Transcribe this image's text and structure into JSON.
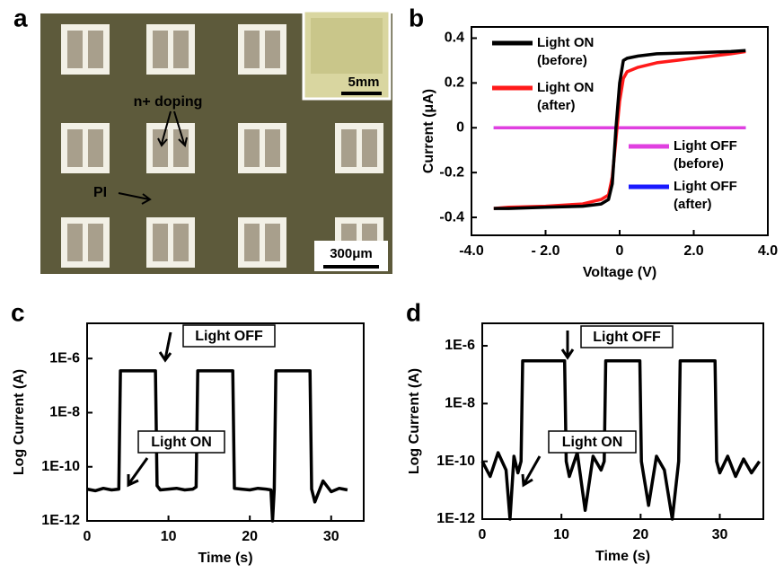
{
  "photo": {
    "label": "a",
    "annotations": [
      "n+ doping",
      "PI"
    ],
    "inset_scale": "5mm",
    "scale_bar": "300μm"
  },
  "chart_data": [
    {
      "type": "line",
      "panel_label": "b",
      "x_label": "Voltage (V)",
      "y_label": "Current (μA)",
      "xlim": [
        -4,
        4
      ],
      "ylim": [
        -0.48,
        0.45
      ],
      "xticks": [
        {
          "value": -4,
          "label": "-4.0"
        },
        {
          "value": -2,
          "label": "- 2.0"
        },
        0,
        {
          "value": 2,
          "label": "2.0"
        },
        {
          "value": 4,
          "label": "4.0"
        }
      ],
      "yticks": [
        -0.4,
        -0.2,
        0,
        0.2,
        0.4
      ],
      "x": [
        -3.4,
        -3,
        -2,
        -1,
        -0.5,
        -0.3,
        -0.2,
        -0.1,
        0,
        0.1,
        0.2,
        0.5,
        1,
        2,
        3,
        3.4
      ],
      "series": [
        {
          "name": "Light ON (before)",
          "color": "#000000",
          "values": [
            -0.36,
            -0.36,
            -0.355,
            -0.35,
            -0.34,
            -0.32,
            -0.25,
            0,
            0.2,
            0.3,
            0.31,
            0.32,
            0.33,
            0.335,
            0.34,
            0.345
          ]
        },
        {
          "name": "Light ON (after)",
          "color": "#ff1a1a",
          "values": [
            -0.36,
            -0.355,
            -0.35,
            -0.34,
            -0.32,
            -0.3,
            -0.22,
            -0.05,
            0.12,
            0.22,
            0.25,
            0.27,
            0.29,
            0.31,
            0.33,
            0.34
          ]
        },
        {
          "name": "Light OFF (before)",
          "color": "#e040e0",
          "values": [
            0,
            0,
            0,
            0,
            0,
            0,
            0,
            0,
            0,
            0,
            0,
            0,
            0,
            0,
            0,
            0
          ]
        },
        {
          "name": "Light OFF (after)",
          "color": "#1a1aff",
          "values": [
            0,
            0,
            0,
            0,
            0,
            0,
            0,
            0,
            0,
            0,
            0,
            0,
            0,
            0,
            0,
            0
          ]
        }
      ]
    },
    {
      "type": "line",
      "panel_label": "c",
      "x_label": "Time (s)",
      "y_label": "Log Current (A)",
      "yscale": "log",
      "xlim": [
        0,
        34
      ],
      "ylim": [
        1e-12,
        2e-05
      ],
      "xticks": [
        0,
        10,
        20,
        30
      ],
      "yticks": [
        {
          "value": 1e-12,
          "label": "1E-12"
        },
        {
          "value": 1e-10,
          "label": "1E-10"
        },
        {
          "value": 1e-08,
          "label": "1E-8"
        },
        {
          "value": 1e-06,
          "label": "1E-6"
        }
      ],
      "annotations": [
        "Light OFF",
        "Light ON"
      ],
      "x": [
        0,
        1,
        2,
        3,
        3.9,
        4.1,
        5,
        6,
        7,
        8,
        8.4,
        8.6,
        9,
        10,
        11,
        12,
        13,
        13.4,
        13.6,
        14,
        15,
        16,
        17,
        17.9,
        18.1,
        19,
        20,
        21,
        22,
        22.6,
        22.8,
        23,
        23.2,
        24,
        25,
        26,
        27,
        27.4,
        27.6,
        28,
        29,
        30,
        31,
        32
      ],
      "series": [
        {
          "color": "#000000",
          "values": [
            1.5e-11,
            1.3e-11,
            1.6e-11,
            1.4e-11,
            1.5e-11,
            3.5e-07,
            3.5e-07,
            3.5e-07,
            3.5e-07,
            3.5e-07,
            3.5e-07,
            2e-11,
            1.4e-11,
            1.5e-11,
            1.6e-11,
            1.4e-11,
            1.5e-11,
            1.8e-11,
            3.5e-07,
            3.5e-07,
            3.5e-07,
            3.5e-07,
            3.5e-07,
            3.5e-07,
            1.6e-11,
            1.5e-11,
            1.4e-11,
            1.6e-11,
            1.5e-11,
            1.4e-11,
            1e-12,
            1.5e-11,
            3.5e-07,
            3.5e-07,
            3.5e-07,
            3.5e-07,
            3.5e-07,
            3.5e-07,
            1.5e-11,
            5e-12,
            3e-11,
            1.2e-11,
            1.6e-11,
            1.4e-11
          ]
        }
      ]
    },
    {
      "type": "line",
      "panel_label": "d",
      "x_label": "Time (s)",
      "y_label": "Log Current (A)",
      "yscale": "log",
      "xlim": [
        0,
        35.5
      ],
      "ylim": [
        1e-12,
        6e-06
      ],
      "xticks": [
        0,
        10,
        20,
        30
      ],
      "yticks": [
        {
          "value": 1e-12,
          "label": "1E-12"
        },
        {
          "value": 1e-10,
          "label": "1E-10"
        },
        {
          "value": 1e-08,
          "label": "1E-8"
        },
        {
          "value": 1e-06,
          "label": "1E-6"
        }
      ],
      "annotations": [
        "Light OFF",
        "Light ON"
      ],
      "x": [
        0,
        1,
        2,
        3,
        3.5,
        4,
        4.5,
        4.9,
        5.1,
        6,
        8,
        10,
        10.4,
        10.6,
        11,
        12,
        13,
        14,
        15,
        15.4,
        15.6,
        17,
        19,
        19.9,
        20.1,
        21,
        22,
        23,
        24,
        24.8,
        25,
        26,
        28,
        29.4,
        29.6,
        30,
        31,
        32,
        33,
        34,
        35
      ],
      "series": [
        {
          "color": "#000000",
          "values": [
            1e-10,
            3e-11,
            2e-10,
            5e-11,
            1e-12,
            1.5e-10,
            4e-11,
            1e-10,
            3e-07,
            3e-07,
            3e-07,
            3e-07,
            3e-07,
            1e-10,
            3e-11,
            2e-10,
            2e-12,
            1.5e-10,
            5e-11,
            1e-10,
            3e-07,
            3e-07,
            3e-07,
            3e-07,
            1e-10,
            3e-12,
            1.5e-10,
            5e-11,
            1e-12,
            1e-10,
            3e-07,
            3e-07,
            3e-07,
            3e-07,
            1e-10,
            4e-11,
            1.5e-10,
            3e-11,
            1.2e-10,
            4e-11,
            1e-10
          ]
        }
      ]
    }
  ]
}
